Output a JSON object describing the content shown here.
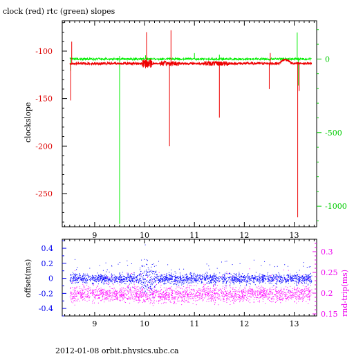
{
  "title": "clock (red) rtc (green) slopes",
  "footer": "2012-01-08  orbit.physics.ubc.ca",
  "chart_data": [
    {
      "type": "line",
      "title": "clock (red) rtc (green) slopes",
      "xlim": [
        8.35,
        13.45
      ],
      "x_ticks": [
        9,
        10,
        11,
        12,
        13
      ],
      "left_axis": {
        "label": "clockslope",
        "ylim": [
          -285,
          -68
        ],
        "ticks": [
          -100,
          -150,
          -200,
          -250
        ],
        "color": "#dd0000"
      },
      "right_axis": {
        "label": "",
        "ylim": [
          -1140,
          260
        ],
        "ticks": [
          0,
          -500,
          -1000
        ],
        "color": "#00cc00"
      },
      "series": [
        {
          "name": "clock",
          "color": "#ee0000",
          "baseline": -113,
          "spikes": [
            {
              "x": 8.52,
              "y": -152
            },
            {
              "x": 8.54,
              "y": -90
            },
            {
              "x": 9.99,
              "y": -110
            },
            {
              "x": 10.02,
              "y": -118
            },
            {
              "x": 10.04,
              "y": -80
            },
            {
              "x": 10.5,
              "y": -200
            },
            {
              "x": 10.53,
              "y": -78
            },
            {
              "x": 11.5,
              "y": -170
            },
            {
              "x": 12.5,
              "y": -140
            },
            {
              "x": 12.52,
              "y": -102
            },
            {
              "x": 13.07,
              "y": -275
            },
            {
              "x": 13.1,
              "y": -142
            }
          ]
        },
        {
          "name": "rtc",
          "color": "#00ee00",
          "baseline": 0,
          "spikes": [
            {
              "x": 8.52,
              "y": -80
            },
            {
              "x": 9.5,
              "y": -1120
            },
            {
              "x": 9.5,
              "y": 20
            },
            {
              "x": 10.02,
              "y": 25
            },
            {
              "x": 11.0,
              "y": 40
            },
            {
              "x": 11.5,
              "y": 30
            },
            {
              "x": 13.06,
              "y": 180
            },
            {
              "x": 13.08,
              "y": -180
            }
          ]
        }
      ]
    },
    {
      "type": "scatter",
      "xlim": [
        8.35,
        13.45
      ],
      "x_ticks": [
        9,
        10,
        11,
        12,
        13
      ],
      "left_axis": {
        "label": "offset(ms)",
        "ylim": [
          -0.5,
          0.52
        ],
        "ticks": [
          0.4,
          0.2,
          0,
          -0.2,
          -0.4
        ],
        "color": "#0000ee"
      },
      "right_axis": {
        "label": "rnd-trip(ms)",
        "ylim": [
          0.145,
          0.33
        ],
        "ticks": [
          0.3,
          0.25,
          0.2,
          0.15
        ],
        "color": "#ee00ee"
      },
      "series": [
        {
          "name": "offset",
          "color": "#0000ff",
          "center": 0.0,
          "spread": 0.04,
          "x_range": [
            8.5,
            13.35
          ]
        },
        {
          "name": "rnd-trip",
          "color": "#ff00ff",
          "center": 0.198,
          "spread": 0.012,
          "x_range": [
            8.5,
            13.35
          ]
        }
      ]
    }
  ]
}
